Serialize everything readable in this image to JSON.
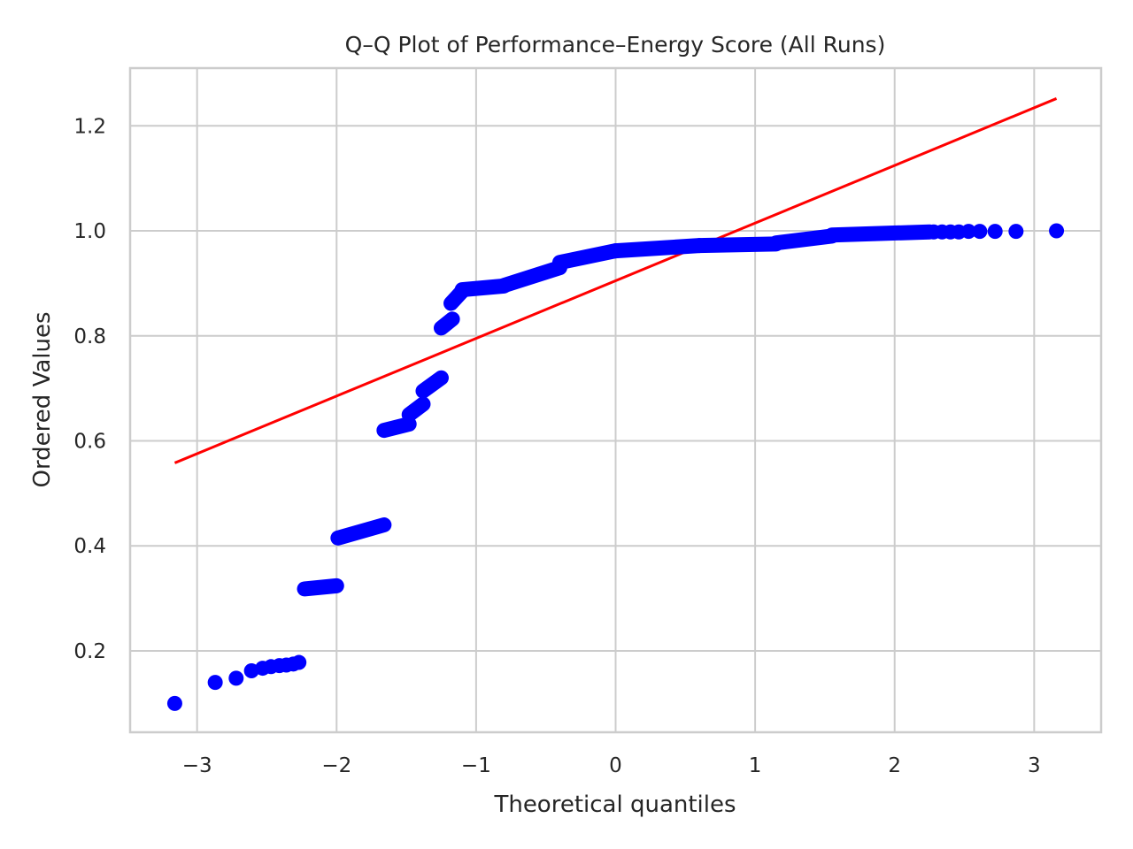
{
  "chart_data": {
    "type": "scatter",
    "title": "Q–Q Plot of Performance–Energy Score (All Runs)",
    "xlabel": "Theoretical quantiles",
    "ylabel": "Ordered Values",
    "xlim": [
      -3.48,
      3.48
    ],
    "ylim": [
      0.045,
      1.31
    ],
    "xticks": [
      {
        "value": -3,
        "label": "−3"
      },
      {
        "value": -2,
        "label": "−2"
      },
      {
        "value": -1,
        "label": "−1"
      },
      {
        "value": 0,
        "label": "0"
      },
      {
        "value": 1,
        "label": "1"
      },
      {
        "value": 2,
        "label": "2"
      },
      {
        "value": 3,
        "label": "3"
      }
    ],
    "yticks": [
      {
        "value": 0.2,
        "label": "0.2"
      },
      {
        "value": 0.4,
        "label": "0.4"
      },
      {
        "value": 0.6,
        "label": "0.6"
      },
      {
        "value": 0.8,
        "label": "0.8"
      },
      {
        "value": 1.0,
        "label": "1.0"
      },
      {
        "value": 1.2,
        "label": "1.2"
      }
    ],
    "grid": true,
    "point_color": "#0000ff",
    "line_color": "#ff0000",
    "fit_line": {
      "x": [
        -3.16,
        3.16
      ],
      "y": [
        0.558,
        1.252
      ]
    },
    "series": [
      {
        "kind": "points",
        "x": [
          -3.16,
          -2.87,
          -2.72,
          -2.61,
          -2.53,
          -2.47,
          -2.41,
          -2.36,
          -2.31,
          -2.27
        ],
        "y": [
          0.1,
          0.14,
          0.148,
          0.162,
          0.167,
          0.17,
          0.172,
          0.173,
          0.175,
          0.178
        ]
      },
      {
        "kind": "segments",
        "segments": [
          {
            "x0": -2.23,
            "x1": -2.0,
            "y0": 0.318,
            "y1": 0.324
          },
          {
            "x0": -1.99,
            "x1": -1.66,
            "y0": 0.415,
            "y1": 0.44
          },
          {
            "x0": -1.66,
            "x1": -1.48,
            "y0": 0.62,
            "y1": 0.632
          },
          {
            "x0": -1.48,
            "x1": -1.38,
            "y0": 0.65,
            "y1": 0.67
          },
          {
            "x0": -1.38,
            "x1": -1.25,
            "y0": 0.695,
            "y1": 0.72
          },
          {
            "x0": -1.25,
            "x1": -1.17,
            "y0": 0.815,
            "y1": 0.832
          },
          {
            "x0": -1.18,
            "x1": -1.1,
            "y0": 0.862,
            "y1": 0.885
          },
          {
            "x0": -1.1,
            "x1": -0.8,
            "y0": 0.888,
            "y1": 0.895
          },
          {
            "x0": -0.8,
            "x1": -0.4,
            "y0": 0.896,
            "y1": 0.93
          },
          {
            "x0": -0.4,
            "x1": 0.0,
            "y0": 0.94,
            "y1": 0.962
          },
          {
            "x0": 0.0,
            "x1": 0.6,
            "y0": 0.962,
            "y1": 0.972
          },
          {
            "x0": 0.6,
            "x1": 1.15,
            "y0": 0.972,
            "y1": 0.975
          },
          {
            "x0": 1.15,
            "x1": 1.55,
            "y0": 0.977,
            "y1": 0.99
          },
          {
            "x0": 1.55,
            "x1": 2.25,
            "y0": 0.992,
            "y1": 0.998
          }
        ]
      },
      {
        "kind": "points",
        "x": [
          2.28,
          2.34,
          2.4,
          2.46,
          2.53,
          2.61,
          2.72,
          2.87,
          3.16
        ],
        "y": [
          0.998,
          0.998,
          0.998,
          0.998,
          0.999,
          0.999,
          0.999,
          0.999,
          1.0
        ]
      }
    ]
  }
}
